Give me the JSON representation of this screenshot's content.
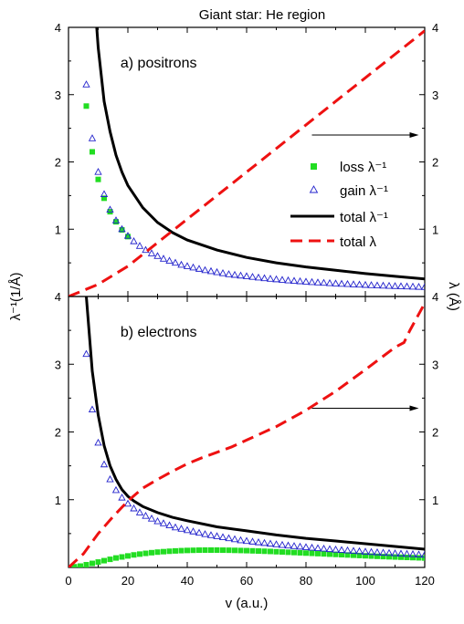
{
  "title": "Giant star: He region",
  "x_axis_title": "v (a.u.)",
  "y_left_title": "λ⁻¹(1/Å)",
  "y_right_title": "λ (Å)",
  "colors": {
    "loss": "#22dd22",
    "gain": "#2222cc",
    "total_inv": "#000000",
    "total_lambda": "#ee1111"
  },
  "chart_data": [
    {
      "type": "line",
      "panel_label": "a) positrons",
      "xlim": [
        0,
        120
      ],
      "ylim_left": [
        0,
        4
      ],
      "ylim_right": [
        0,
        4
      ],
      "x_ticks": [
        0,
        20,
        40,
        60,
        80,
        100,
        120
      ],
      "y_ticks_left": [
        "1",
        "2",
        "3",
        "4"
      ],
      "y_ticks_right": [
        "1",
        "2",
        "3",
        "4"
      ],
      "legend": [
        "loss  λ⁻¹",
        "gain  λ⁻¹",
        "total  λ⁻¹",
        "total  λ"
      ],
      "series": [
        {
          "name": "loss  λ⁻¹",
          "style": "squares",
          "x": [
            6,
            8,
            10,
            12,
            14,
            16,
            18,
            20
          ],
          "y": [
            2.83,
            2.15,
            1.74,
            1.46,
            1.26,
            1.11,
            0.99,
            0.89
          ]
        },
        {
          "name": "gain  λ⁻¹",
          "style": "triangles",
          "x": [
            6,
            8,
            10,
            12,
            14,
            16,
            18,
            20,
            22,
            24,
            26,
            28,
            30,
            32,
            34,
            36,
            38,
            40,
            42,
            44,
            46,
            48,
            50,
            52,
            54,
            56,
            58,
            60,
            62,
            64,
            66,
            68,
            70,
            72,
            74,
            76,
            78,
            80,
            82,
            84,
            86,
            88,
            90,
            92,
            94,
            96,
            98,
            100,
            102,
            104,
            106,
            108,
            110,
            112,
            114,
            116,
            118,
            120
          ],
          "y": [
            3.15,
            2.35,
            1.85,
            1.52,
            1.29,
            1.13,
            1.0,
            0.9,
            0.82,
            0.75,
            0.69,
            0.64,
            0.6,
            0.56,
            0.53,
            0.5,
            0.47,
            0.45,
            0.43,
            0.41,
            0.39,
            0.375,
            0.36,
            0.345,
            0.33,
            0.32,
            0.31,
            0.3,
            0.29,
            0.28,
            0.27,
            0.262,
            0.254,
            0.246,
            0.238,
            0.231,
            0.225,
            0.219,
            0.213,
            0.207,
            0.202,
            0.197,
            0.192,
            0.187,
            0.183,
            0.179,
            0.175,
            0.171,
            0.167,
            0.163,
            0.16,
            0.157,
            0.154,
            0.151,
            0.148,
            0.145,
            0.142,
            0.14
          ]
        },
        {
          "name": "total  λ⁻¹",
          "style": "solid",
          "x": [
            9.5,
            10,
            12,
            14,
            16,
            18,
            20,
            25,
            30,
            35,
            40,
            50,
            60,
            70,
            80,
            90,
            100,
            110,
            120
          ],
          "y": [
            4.0,
            3.7,
            2.9,
            2.45,
            2.1,
            1.85,
            1.65,
            1.32,
            1.1,
            0.95,
            0.84,
            0.69,
            0.58,
            0.5,
            0.44,
            0.39,
            0.34,
            0.3,
            0.26
          ]
        },
        {
          "name": "total  λ",
          "style": "dashed",
          "x": [
            0,
            10,
            20,
            30,
            40,
            50,
            60,
            70,
            80,
            90,
            100,
            110,
            120
          ],
          "y": [
            0.0,
            0.18,
            0.45,
            0.8,
            1.15,
            1.5,
            1.85,
            2.2,
            2.55,
            2.9,
            3.25,
            3.6,
            3.95
          ]
        }
      ],
      "arrow": {
        "from": [
          82,
          2.4
        ],
        "to": [
          118,
          2.4
        ]
      }
    },
    {
      "type": "line",
      "panel_label": "b) electrons",
      "xlim": [
        0,
        120
      ],
      "ylim_left": [
        0,
        4
      ],
      "ylim_right": [
        0,
        4
      ],
      "x_ticks": [
        0,
        20,
        40,
        60,
        80,
        100,
        120
      ],
      "x_tick_labels": [
        "0",
        "20",
        "40",
        "60",
        "80",
        "100",
        "120"
      ],
      "y_ticks_left": [
        "1",
        "2",
        "3",
        "4"
      ],
      "y_ticks_right": [
        "1",
        "2",
        "3",
        "4"
      ],
      "series": [
        {
          "name": "loss  λ⁻¹",
          "style": "squares",
          "x": [
            2,
            4,
            6,
            8,
            10,
            12,
            14,
            16,
            18,
            20,
            22,
            24,
            26,
            28,
            30,
            32,
            34,
            36,
            38,
            40,
            42,
            44,
            46,
            48,
            50,
            52,
            54,
            56,
            58,
            60,
            62,
            64,
            66,
            68,
            70,
            72,
            74,
            76,
            78,
            80,
            82,
            84,
            86,
            88,
            90,
            92,
            94,
            96,
            98,
            100,
            102,
            104,
            106,
            108,
            110,
            112,
            114,
            116,
            118,
            120
          ],
          "y": [
            0.01,
            0.02,
            0.04,
            0.06,
            0.08,
            0.1,
            0.12,
            0.14,
            0.155,
            0.17,
            0.185,
            0.197,
            0.208,
            0.218,
            0.226,
            0.233,
            0.239,
            0.244,
            0.248,
            0.251,
            0.253,
            0.255,
            0.256,
            0.256,
            0.256,
            0.255,
            0.254,
            0.252,
            0.25,
            0.248,
            0.245,
            0.242,
            0.239,
            0.236,
            0.232,
            0.228,
            0.224,
            0.22,
            0.216,
            0.212,
            0.208,
            0.204,
            0.2,
            0.196,
            0.192,
            0.188,
            0.184,
            0.18,
            0.176,
            0.172,
            0.168,
            0.164,
            0.16,
            0.157,
            0.154,
            0.151,
            0.148,
            0.145,
            0.142,
            0.139
          ]
        },
        {
          "name": "gain  λ⁻¹",
          "style": "triangles",
          "x": [
            6,
            8,
            10,
            12,
            14,
            16,
            18,
            20,
            22,
            24,
            26,
            28,
            30,
            32,
            34,
            36,
            38,
            40,
            42,
            44,
            46,
            48,
            50,
            52,
            54,
            56,
            58,
            60,
            62,
            64,
            66,
            68,
            70,
            72,
            74,
            76,
            78,
            80,
            82,
            84,
            86,
            88,
            90,
            92,
            94,
            96,
            98,
            100,
            102,
            104,
            106,
            108,
            110,
            112,
            114,
            116,
            118,
            120
          ],
          "y": [
            3.15,
            2.33,
            1.84,
            1.52,
            1.3,
            1.14,
            1.03,
            0.94,
            0.87,
            0.81,
            0.76,
            0.72,
            0.68,
            0.65,
            0.62,
            0.59,
            0.57,
            0.55,
            0.53,
            0.51,
            0.49,
            0.475,
            0.46,
            0.445,
            0.43,
            0.415,
            0.4,
            0.39,
            0.38,
            0.37,
            0.36,
            0.35,
            0.34,
            0.331,
            0.322,
            0.314,
            0.306,
            0.298,
            0.29,
            0.283,
            0.276,
            0.269,
            0.262,
            0.256,
            0.25,
            0.244,
            0.238,
            0.232,
            0.227,
            0.222,
            0.217,
            0.212,
            0.207,
            0.202,
            0.198,
            0.194,
            0.19,
            0.186
          ]
        },
        {
          "name": "total  λ⁻¹",
          "style": "solid",
          "x": [
            6,
            8,
            10,
            12,
            14,
            16,
            18,
            20,
            22,
            25,
            30,
            35,
            40,
            50,
            60,
            70,
            80,
            90,
            100,
            110,
            120
          ],
          "y": [
            4.0,
            2.9,
            2.25,
            1.8,
            1.5,
            1.3,
            1.15,
            1.05,
            0.98,
            0.9,
            0.81,
            0.74,
            0.69,
            0.6,
            0.54,
            0.48,
            0.43,
            0.39,
            0.35,
            0.31,
            0.27
          ]
        },
        {
          "name": "total  λ",
          "style": "dashed",
          "x": [
            0,
            5,
            10,
            15,
            20,
            25,
            30,
            35,
            40,
            45,
            50,
            55,
            60,
            70,
            80,
            90,
            100,
            110,
            113,
            115,
            120
          ],
          "y": [
            0.0,
            0.2,
            0.5,
            0.75,
            0.98,
            1.17,
            1.3,
            1.42,
            1.53,
            1.62,
            1.7,
            1.78,
            1.88,
            2.08,
            2.32,
            2.6,
            2.92,
            3.25,
            3.32,
            3.5,
            3.9
          ]
        }
      ],
      "arrow": {
        "from": [
          82,
          2.35
        ],
        "to": [
          118,
          2.35
        ]
      }
    }
  ]
}
